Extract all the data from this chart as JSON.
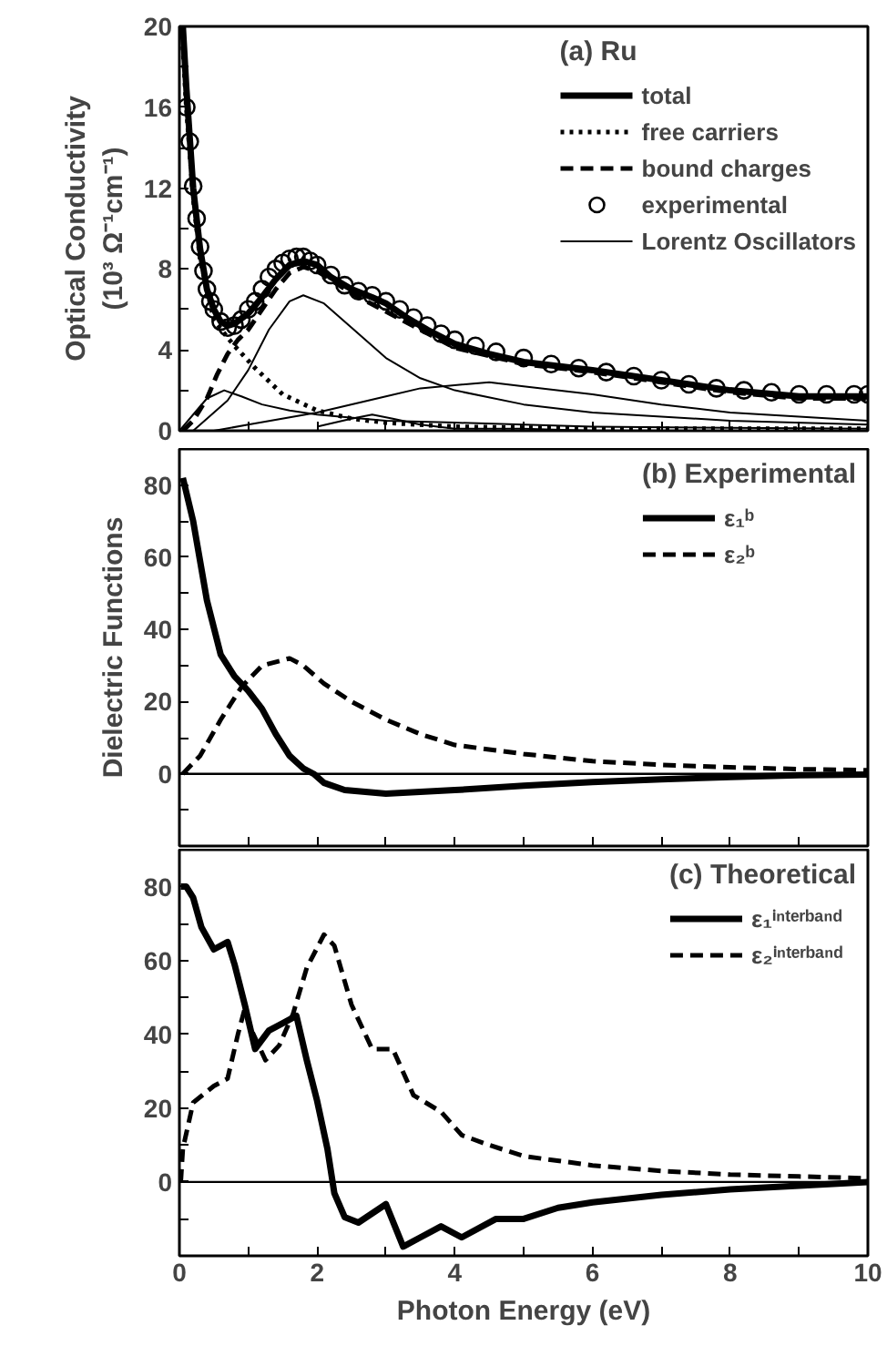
{
  "chart_data": [
    {
      "type": "line",
      "legend_title": "(a) Ru",
      "ylabel": "Optical Conductivity\n(10³ Ω⁻¹cm⁻¹)",
      "xlim": [
        0,
        10
      ],
      "ylim": [
        0,
        20
      ],
      "xticks": [
        0,
        {
          "value": 1,
          "label": null
        },
        2,
        {
          "value": 3,
          "label": null
        },
        4,
        {
          "value": 5,
          "label": null
        },
        6,
        {
          "value": 7,
          "label": null
        },
        8,
        {
          "value": 9,
          "label": null
        },
        10
      ],
      "yticks": [
        0,
        {
          "value": 2,
          "label": null
        },
        4,
        {
          "value": 6,
          "label": null
        },
        8,
        {
          "value": 10,
          "label": null
        },
        12,
        {
          "value": 14,
          "label": null
        },
        16,
        {
          "value": 18,
          "label": null
        },
        20
      ],
      "tick_labels": "y",
      "legend": "top right",
      "series": [
        {
          "name": "total",
          "color": "#000000",
          "line_style": "solid",
          "x": [
            0.05,
            0.1,
            0.15,
            0.2,
            0.3,
            0.4,
            0.5,
            0.6,
            0.7,
            0.8,
            1.0,
            1.2,
            1.4,
            1.6,
            1.8,
            2.0,
            2.2,
            2.5,
            2.8,
            3.0,
            3.3,
            3.6,
            4.0,
            4.5,
            5.0,
            6.0,
            7.0,
            8.0,
            9.0,
            10.0
          ],
          "values": [
            20,
            17,
            14.5,
            12,
            9,
            7,
            6,
            5.4,
            5.2,
            5.3,
            5.8,
            6.6,
            7.5,
            8.2,
            8.4,
            8.2,
            7.6,
            7.0,
            6.6,
            6.3,
            5.6,
            5.0,
            4.3,
            3.8,
            3.4,
            3.0,
            2.5,
            2.0,
            1.7,
            1.7
          ]
        },
        {
          "name": "free carriers",
          "color": "#000000",
          "line_style": "dotted",
          "x": [
            0.05,
            0.1,
            0.2,
            0.3,
            0.5,
            0.7,
            0.8,
            1.1,
            1.5,
            2.0,
            2.5,
            3.0,
            4.0,
            6.0,
            8.0,
            10.0
          ],
          "values": [
            19,
            16,
            11.5,
            8.5,
            5.5,
            4.6,
            4.2,
            3.1,
            1.8,
            1.0,
            0.6,
            0.4,
            0.2,
            0.1,
            0.1,
            0.1
          ]
        },
        {
          "name": "bound charges",
          "color": "#000000",
          "line_style": "dashed",
          "x": [
            0.05,
            0.2,
            0.4,
            0.55,
            0.7,
            0.85,
            1.0,
            1.2,
            1.4,
            1.6,
            1.8,
            2.0,
            2.5,
            3.0,
            4.0,
            5.0,
            6.0,
            7.0,
            8.0,
            9.0,
            10.0
          ],
          "values": [
            0,
            0.5,
            1.6,
            2.8,
            3.8,
            4.5,
            5.0,
            6.0,
            7.0,
            7.8,
            8.1,
            7.9,
            6.8,
            5.9,
            4.1,
            3.3,
            2.9,
            2.4,
            1.9,
            1.6,
            1.6
          ]
        },
        {
          "name": "experimental",
          "type": "scatter",
          "marker": "circle",
          "color": "#000000",
          "x": [
            0.1,
            0.15,
            0.2,
            0.25,
            0.3,
            0.35,
            0.4,
            0.45,
            0.5,
            0.6,
            0.7,
            0.8,
            0.9,
            1.0,
            1.1,
            1.2,
            1.3,
            1.4,
            1.5,
            1.6,
            1.7,
            1.8,
            1.9,
            2.0,
            2.2,
            2.4,
            2.6,
            2.8,
            3.0,
            3.2,
            3.4,
            3.6,
            3.8,
            4.0,
            4.3,
            4.6,
            5.0,
            5.4,
            5.8,
            6.2,
            6.6,
            7.0,
            7.4,
            7.8,
            8.2,
            8.6,
            9.0,
            9.4,
            9.8,
            10.0
          ],
          "values": [
            16,
            14.3,
            12.1,
            10.5,
            9.1,
            7.9,
            7.0,
            6.4,
            6.0,
            5.4,
            5.1,
            5.2,
            5.5,
            6.0,
            6.4,
            7.0,
            7.6,
            8.0,
            8.3,
            8.5,
            8.6,
            8.6,
            8.4,
            8.2,
            7.7,
            7.2,
            6.9,
            6.7,
            6.4,
            6.0,
            5.6,
            5.2,
            4.8,
            4.5,
            4.2,
            3.9,
            3.6,
            3.3,
            3.1,
            2.9,
            2.7,
            2.5,
            2.3,
            2.1,
            2.0,
            1.9,
            1.8,
            1.8,
            1.8,
            1.8
          ]
        },
        {
          "name": "Lorentz Oscillators",
          "color": "#000000",
          "line_style": "solid",
          "x": [
            0,
            0.2,
            0.4,
            0.65,
            0.9,
            1.2,
            1.6,
            2.0,
            3.0,
            4.0,
            6.0,
            10.0
          ],
          "values": [
            0,
            0.8,
            1.6,
            2.0,
            1.7,
            1.3,
            1.0,
            0.8,
            0.5,
            0.4,
            0.2,
            0.1
          ]
        },
        {
          "color": "#000000",
          "line_style": "solid",
          "x": [
            0.2,
            0.4,
            0.7,
            1.0,
            1.3,
            1.6,
            1.8,
            2.1,
            2.5,
            3.0,
            3.5,
            4.0,
            5.0,
            6.0,
            8.0,
            10.0
          ],
          "values": [
            0,
            0.6,
            1.5,
            3.0,
            5.0,
            6.4,
            6.7,
            6.3,
            5.1,
            3.6,
            2.6,
            2.0,
            1.3,
            0.9,
            0.5,
            0.3
          ]
        },
        {
          "color": "#000000",
          "line_style": "solid",
          "x": [
            0.5,
            1.0,
            2.0,
            3.0,
            3.5,
            4.5,
            5.0,
            6.0,
            7.0,
            8.0,
            9.0,
            10.0
          ],
          "values": [
            0,
            0.3,
            0.9,
            1.7,
            2.1,
            2.4,
            2.2,
            1.8,
            1.3,
            0.9,
            0.7,
            0.5
          ]
        },
        {
          "color": "#000000",
          "line_style": "solid",
          "x": [
            2.0,
            2.5,
            2.8,
            3.1,
            3.5,
            4.0,
            5.0,
            6.0
          ],
          "values": [
            0.2,
            0.6,
            0.8,
            0.6,
            0.3,
            0.1,
            0.1,
            0
          ]
        }
      ]
    },
    {
      "type": "line",
      "legend_title": "(b) Experimental",
      "ylabel": "Dielectric Functions",
      "xlim": [
        0,
        10
      ],
      "ylim": [
        -20,
        90
      ],
      "xticks": [
        0,
        {
          "value": 1,
          "label": null
        },
        2,
        {
          "value": 3,
          "label": null
        },
        4,
        {
          "value": 5,
          "label": null
        },
        6,
        {
          "value": 7,
          "label": null
        },
        8,
        {
          "value": 9,
          "label": null
        },
        10
      ],
      "yticks": [
        {
          "value": -10,
          "label": null
        },
        0,
        {
          "value": 10,
          "label": null
        },
        20,
        {
          "value": 30,
          "label": null
        },
        40,
        {
          "value": 50,
          "label": null
        },
        60,
        {
          "value": 70,
          "label": null
        },
        80
      ],
      "tick_labels": "y",
      "legend": "top right",
      "ref_lines": [
        {
          "axis": "y",
          "value": 0,
          "color": "#000000",
          "line_style": "solid"
        }
      ],
      "series": [
        {
          "name": "ε₁ᵇ",
          "color": "#000000",
          "line_style": "solid",
          "x": [
            0.05,
            0.2,
            0.4,
            0.6,
            0.8,
            1.0,
            1.2,
            1.4,
            1.6,
            1.8,
            1.95,
            2.1,
            2.4,
            3.0,
            4.0,
            5.0,
            6.0,
            7.0,
            8.0,
            9.0,
            10.0
          ],
          "values": [
            82,
            70,
            48,
            33,
            27,
            23,
            18,
            11,
            5,
            1.5,
            0,
            -2.5,
            -4.5,
            -5.5,
            -4.5,
            -3.3,
            -2.3,
            -1.5,
            -0.9,
            -0.4,
            -0.2
          ]
        },
        {
          "name": "ε₂ᵇ",
          "color": "#000000",
          "line_style": "dashed",
          "x": [
            0.05,
            0.3,
            0.6,
            0.9,
            1.2,
            1.6,
            1.8,
            2.1,
            2.5,
            3.0,
            3.5,
            4.0,
            5.0,
            6.0,
            7.0,
            8.0,
            9.0,
            10.0
          ],
          "values": [
            0,
            5,
            15,
            24,
            30,
            32,
            30,
            25,
            20,
            15,
            11,
            8,
            5.5,
            3.5,
            2.5,
            1.8,
            1.3,
            1.0
          ]
        }
      ]
    },
    {
      "type": "line",
      "legend_title": "(c) Theoretical",
      "xlabel": "Photon Energy (eV)",
      "xlim": [
        0,
        10
      ],
      "ylim": [
        -20,
        90
      ],
      "xticks": [
        0,
        {
          "value": 1,
          "label": null
        },
        2,
        {
          "value": 3,
          "label": null
        },
        4,
        {
          "value": 5,
          "label": null
        },
        6,
        {
          "value": 7,
          "label": null
        },
        8,
        {
          "value": 9,
          "label": null
        },
        10
      ],
      "yticks": [
        {
          "value": -10,
          "label": null
        },
        0,
        {
          "value": 10,
          "label": null
        },
        20,
        {
          "value": 30,
          "label": null
        },
        40,
        {
          "value": 50,
          "label": null
        },
        60,
        {
          "value": 70,
          "label": null
        },
        80
      ],
      "legend": "top right",
      "ref_lines": [
        {
          "axis": "y",
          "value": 0,
          "color": "#000000",
          "line_style": "solid"
        }
      ],
      "series": [
        {
          "name": "ε₁ⁱⁿᵗᵉʳᵇᵃⁿᵈ",
          "color": "#000000",
          "line_style": "solid",
          "x": [
            0.02,
            0.1,
            0.2,
            0.32,
            0.5,
            0.7,
            0.8,
            0.95,
            1.1,
            1.3,
            1.5,
            1.7,
            1.85,
            2.0,
            2.15,
            2.25,
            2.4,
            2.6,
            3.0,
            3.25,
            3.5,
            3.8,
            4.1,
            4.6,
            5.0,
            5.5,
            6.0,
            7.0,
            8.0,
            9.0,
            10.0
          ],
          "values": [
            80,
            80,
            77,
            69,
            63,
            65,
            59,
            48,
            36,
            41,
            43,
            45,
            33,
            22,
            9,
            -3,
            -9.5,
            -11,
            -6,
            -17.5,
            -15,
            -12,
            -15,
            -10,
            -10,
            -7,
            -5.5,
            -3.5,
            -2,
            -1,
            0
          ]
        },
        {
          "name": "ε₂ⁱⁿᵗᵉʳᵇᵃⁿᵈ",
          "color": "#000000",
          "line_style": "dashed",
          "x": [
            0.02,
            0.05,
            0.2,
            0.5,
            0.7,
            0.85,
            0.95,
            1.05,
            1.25,
            1.45,
            1.65,
            1.85,
            2.1,
            2.25,
            2.5,
            2.8,
            3.1,
            3.4,
            3.8,
            4.1,
            4.5,
            5.0,
            6.0,
            7.0,
            8.0,
            9.0,
            10.0
          ],
          "values": [
            0,
            9,
            21.5,
            26,
            28,
            40,
            47,
            41,
            33,
            37,
            45.5,
            58,
            67,
            64,
            48,
            36,
            36,
            23.5,
            19,
            12.7,
            10,
            7,
            4.5,
            3,
            2,
            1.5,
            1
          ]
        }
      ]
    }
  ]
}
